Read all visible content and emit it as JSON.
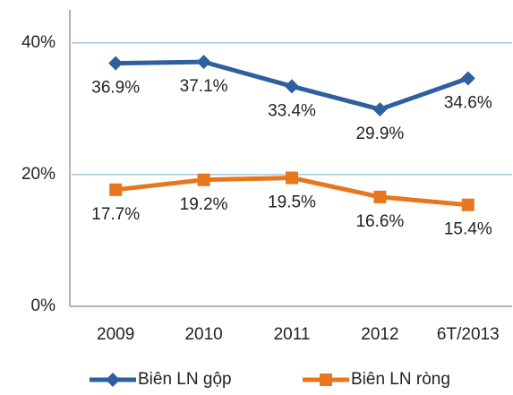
{
  "chart_data": {
    "type": "line",
    "categories": [
      "2009",
      "2010",
      "2011",
      "2012",
      "6T/2013"
    ],
    "series": [
      {
        "name": "Biên LN gộp",
        "color": "#2e5f9e",
        "marker": "diamond",
        "values": [
          36.9,
          37.1,
          33.4,
          29.9,
          34.6
        ],
        "value_labels": [
          "36.9%",
          "37.1%",
          "33.4%",
          "29.9%",
          "34.6%"
        ]
      },
      {
        "name": "Biên LN ròng",
        "color": "#e8761e",
        "marker": "square",
        "values": [
          17.7,
          19.2,
          19.5,
          16.6,
          15.4
        ],
        "value_labels": [
          "17.7%",
          "19.2%",
          "19.5%",
          "16.6%",
          "15.4%"
        ]
      }
    ],
    "ylim": [
      0,
      45
    ],
    "yticks": [
      {
        "value": 0,
        "label": "0%"
      },
      {
        "value": 20,
        "label": "20%"
      },
      {
        "value": 40,
        "label": "40%"
      }
    ],
    "grid": true,
    "legend": "bottom"
  }
}
